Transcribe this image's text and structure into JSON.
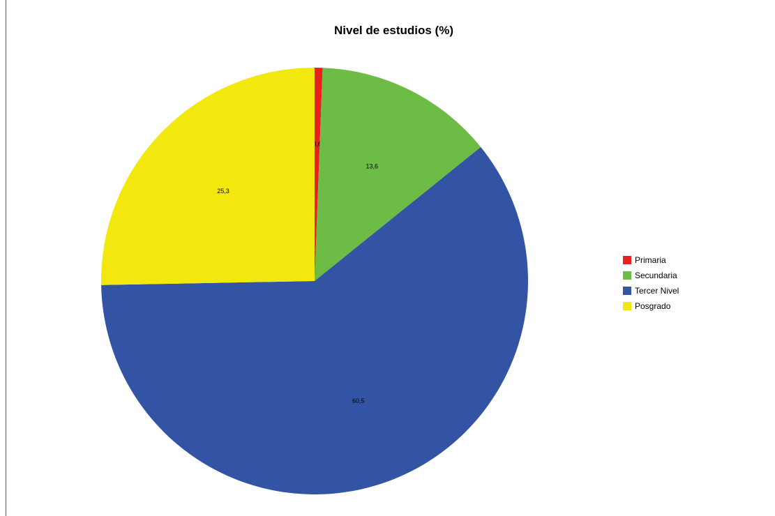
{
  "chart_data": {
    "type": "pie",
    "title": "Nivel de estudios (%)",
    "categories": [
      "Primaria",
      "Secundaria",
      "Tercer Nivel",
      "Posgrado"
    ],
    "values": [
      0.6,
      13.6,
      60.5,
      25.3
    ],
    "value_labels": [
      "0,6",
      "13,6",
      "60,5",
      "25,3"
    ],
    "colors": [
      "#e8211d",
      "#6cbc45",
      "#3353a4",
      "#f2e80e"
    ],
    "start": "12 o'clock",
    "direction": "clockwise",
    "legend_position": "right"
  }
}
